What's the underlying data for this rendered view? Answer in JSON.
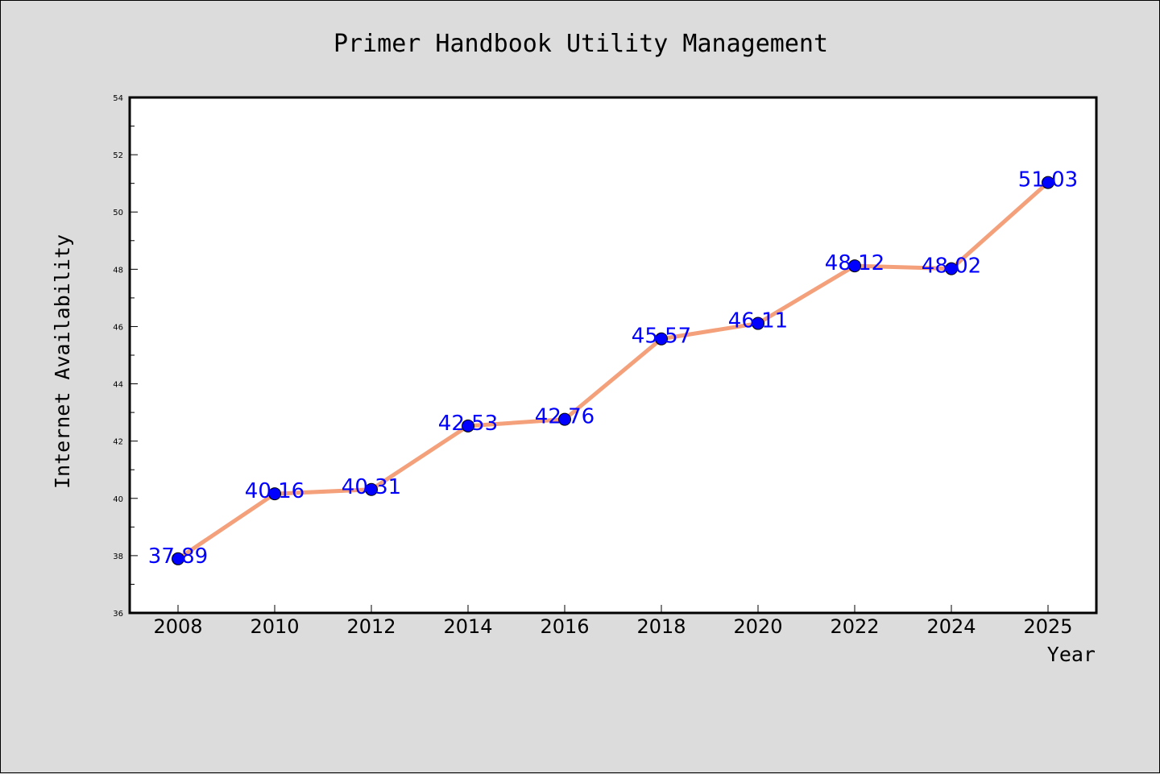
{
  "chart_data": {
    "type": "line",
    "title": "Primer Handbook Utility Management",
    "xlabel": "Year",
    "ylabel": "Internet Availability",
    "categories": [
      "2008",
      "2010",
      "2012",
      "2014",
      "2016",
      "2018",
      "2020",
      "2022",
      "2024",
      "2025"
    ],
    "series": [
      {
        "values": [
          37.89,
          40.16,
          40.31,
          42.53,
          42.76,
          45.57,
          46.11,
          48.12,
          48.02,
          51.03
        ],
        "labels": [
          "37.89",
          "40.16",
          "40.31",
          "42.53",
          "42.76",
          "45.57",
          "46.11",
          "48.12",
          "48.02",
          "51.03"
        ]
      }
    ],
    "ylim": [
      36,
      54
    ],
    "yticks": [
      "36",
      "38",
      "40",
      "42",
      "44",
      "46",
      "48",
      "50",
      "52",
      "54"
    ],
    "grid": false,
    "legend": "none",
    "line_color": "#f4a07a",
    "marker_color": "#0000ff",
    "label_color": "#0000ff",
    "background": "#dcdcdc",
    "plot_background": "#ffffff"
  }
}
